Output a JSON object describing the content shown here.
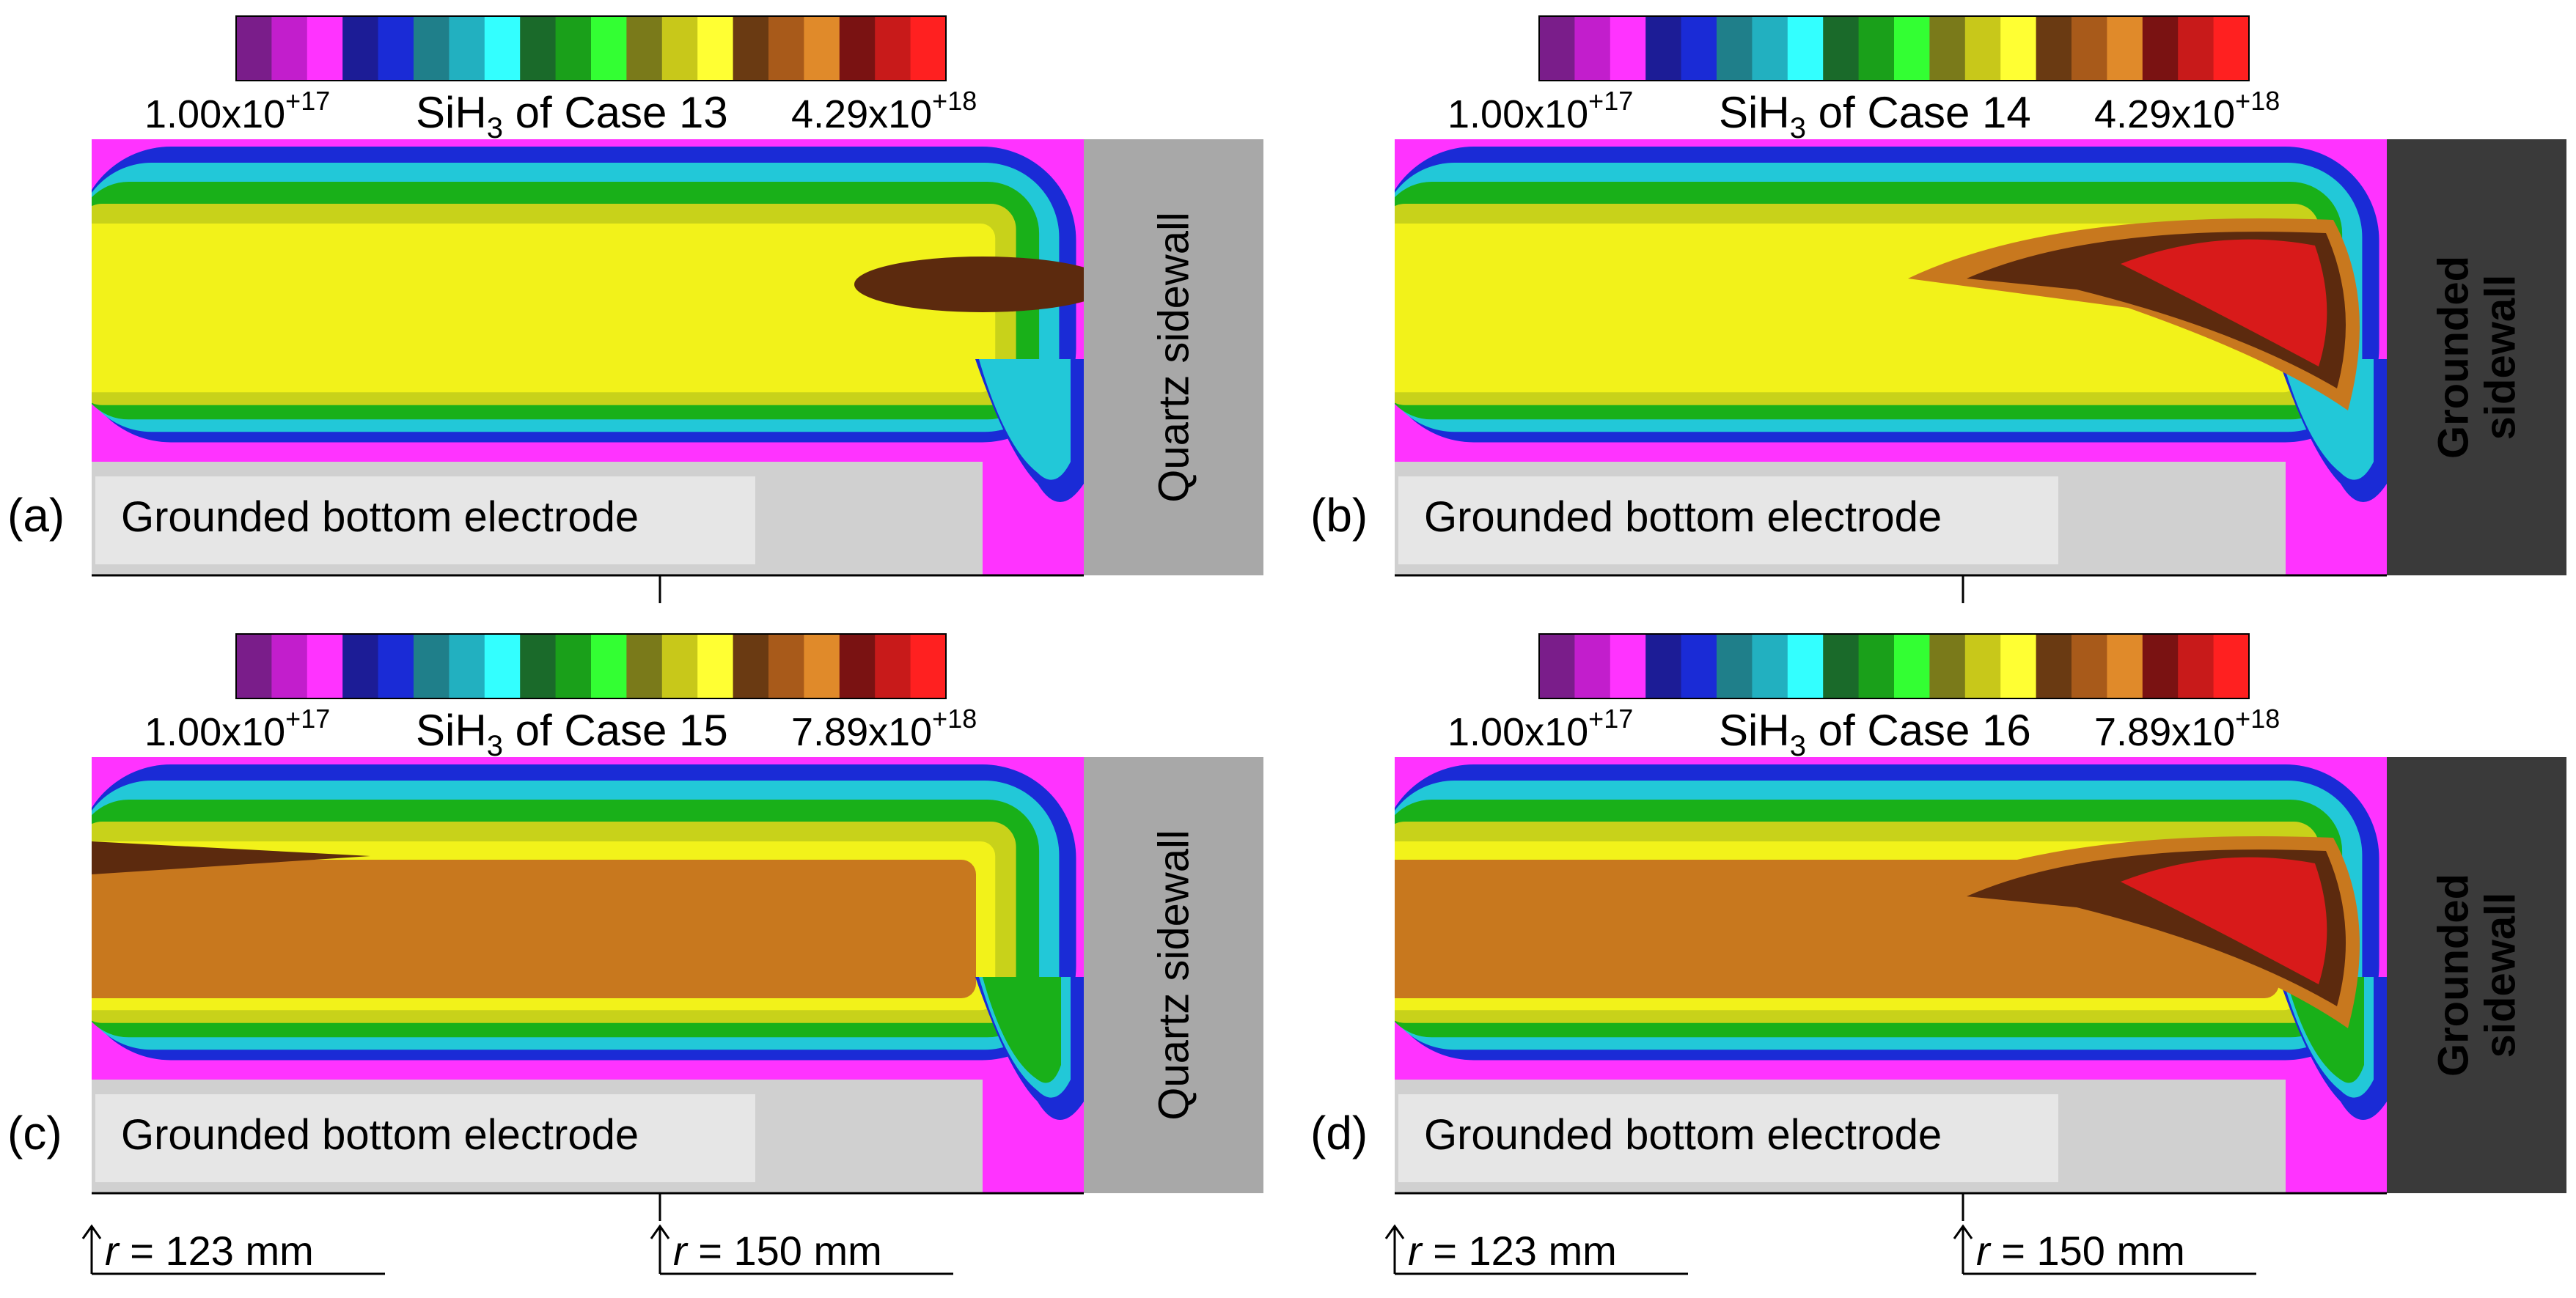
{
  "colorbar_colors": [
    "#7a1d8a",
    "#c21ecc",
    "#ff33ff",
    "#1c1c96",
    "#1a2bd6",
    "#1f7f8a",
    "#22b0c0",
    "#33ffff",
    "#1a6a2a",
    "#1aa01a",
    "#33ff33",
    "#7a7a1a",
    "#c8c81a",
    "#ffff33",
    "#6a3a12",
    "#a85a1a",
    "#e08a2a",
    "#7a1212",
    "#c81a1a",
    "#ff2020"
  ],
  "contour_colors": {
    "magenta": "#ff33ff",
    "blue": "#1a2bd6",
    "cyan": "#22c8d8",
    "green": "#19b019",
    "yellow_green": "#c8d21a",
    "yellow": "#f2f21a",
    "orange": "#c8781e",
    "dark_brown": "#5c2a0e",
    "red": "#d81a1a"
  },
  "panels": [
    {
      "letter": "(a)",
      "colorbar": {
        "min_mant": "1.00x10",
        "min_exp": "+17",
        "max_mant": "4.29x10",
        "max_exp": "+18",
        "title_pre": "SiH",
        "title_sub": "3",
        "title_post": " of Case 13"
      },
      "sidewall": {
        "lines": [
          "Quartz sidewall"
        ],
        "kind": "quartz"
      },
      "electrode_label": "Grounded bottom electrode",
      "peak": "brown"
    },
    {
      "letter": "(b)",
      "colorbar": {
        "min_mant": "1.00x10",
        "min_exp": "+17",
        "max_mant": "4.29x10",
        "max_exp": "+18",
        "title_pre": "SiH",
        "title_sub": "3",
        "title_post": " of Case 14"
      },
      "sidewall": {
        "lines": [
          "Grounded",
          "sidewall"
        ],
        "kind": "grounded"
      },
      "electrode_label": "Grounded bottom electrode",
      "peak": "red"
    },
    {
      "letter": "(c)",
      "colorbar": {
        "min_mant": "1.00x10",
        "min_exp": "+17",
        "max_mant": "7.89x10",
        "max_exp": "+18",
        "title_pre": "SiH",
        "title_sub": "3",
        "title_post": " of Case 15"
      },
      "sidewall": {
        "lines": [
          "Quartz sidewall"
        ],
        "kind": "quartz"
      },
      "electrode_label": "Grounded bottom electrode",
      "peak": "orange"
    },
    {
      "letter": "(d)",
      "colorbar": {
        "min_mant": "1.00x10",
        "min_exp": "+17",
        "max_mant": "7.89x10",
        "max_exp": "+18",
        "title_pre": "SiH",
        "title_sub": "3",
        "title_post": " of Case 16"
      },
      "sidewall": {
        "lines": [
          "Grounded",
          "sidewall"
        ],
        "kind": "grounded"
      },
      "electrode_label": "Grounded bottom electrode",
      "peak": "red"
    }
  ],
  "radius_markers": [
    {
      "var": "r",
      "text": " = 123 mm"
    },
    {
      "var": "r",
      "text": " = 150 mm"
    }
  ]
}
